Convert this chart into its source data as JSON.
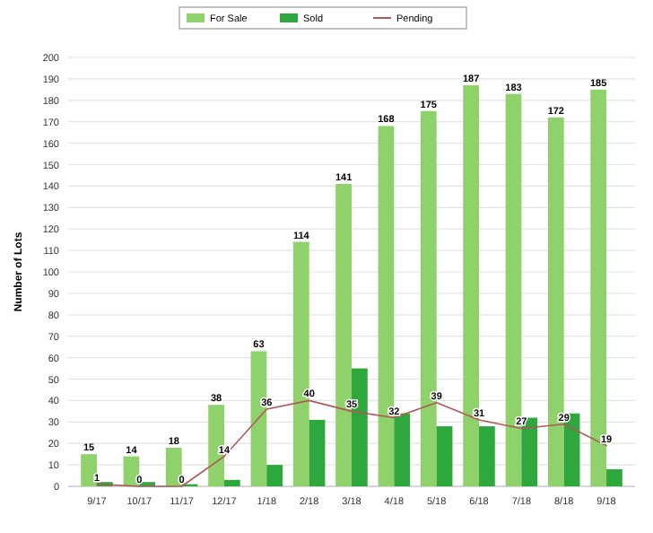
{
  "chart_data": {
    "type": "bar",
    "ylabel": "Number of Lots",
    "categories": [
      "9/17",
      "10/17",
      "11/17",
      "12/17",
      "1/18",
      "2/18",
      "3/18",
      "4/18",
      "5/18",
      "6/18",
      "7/18",
      "8/18",
      "9/18"
    ],
    "series": [
      {
        "name": "For Sale",
        "color": "#8fd16a",
        "values": [
          15,
          14,
          18,
          38,
          63,
          114,
          141,
          168,
          175,
          187,
          183,
          172,
          185
        ],
        "value_labels": [
          "15",
          "14",
          "18",
          "38",
          "63",
          "114",
          "141",
          "168",
          "175",
          "187",
          "183",
          "172",
          "185"
        ]
      },
      {
        "name": "Sold",
        "color": "#2ea83c",
        "values": [
          2,
          2,
          1,
          3,
          10,
          31,
          55,
          34,
          28,
          28,
          32,
          34,
          8
        ]
      },
      {
        "name": "Pending",
        "type": "line",
        "color": "#b0585a",
        "values": [
          1,
          0,
          0,
          14,
          36,
          40,
          35,
          32,
          39,
          31,
          27,
          29,
          19
        ],
        "value_labels": [
          "1",
          "0",
          "0",
          "14",
          "36",
          "40",
          "35",
          "32",
          "39",
          "31",
          "27",
          "29",
          "19"
        ]
      }
    ],
    "ylim": [
      0,
      200
    ],
    "yticks": [
      0,
      10,
      20,
      30,
      40,
      50,
      60,
      70,
      80,
      90,
      100,
      110,
      120,
      130,
      140,
      150,
      160,
      170,
      180,
      190,
      200
    ],
    "grid": "y",
    "legend": "top"
  }
}
